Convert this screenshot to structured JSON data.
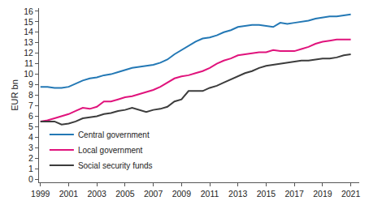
{
  "chart_data": {
    "type": "line",
    "y_label": "EUR bn",
    "x": [
      1999,
      1999.5,
      2000,
      2000.5,
      2001,
      2001.5,
      2002,
      2002.5,
      2003,
      2003.5,
      2004,
      2004.5,
      2005,
      2005.5,
      2006,
      2006.5,
      2007,
      2007.5,
      2008,
      2008.5,
      2009,
      2009.5,
      2010,
      2010.5,
      2011,
      2011.5,
      2012,
      2012.5,
      2013,
      2013.5,
      2014,
      2014.5,
      2015,
      2015.5,
      2016,
      2016.5,
      2017,
      2017.5,
      2018,
      2018.5,
      2019,
      2019.5,
      2020,
      2020.5,
      2021
    ],
    "series": [
      {
        "name": "Central government",
        "color": "#2378b5",
        "values": [
          8.8,
          8.8,
          8.7,
          8.7,
          8.8,
          9.1,
          9.4,
          9.6,
          9.7,
          9.9,
          10.0,
          10.2,
          10.4,
          10.6,
          10.7,
          10.8,
          10.9,
          11.1,
          11.4,
          11.9,
          12.3,
          12.7,
          13.1,
          13.4,
          13.5,
          13.7,
          14.0,
          14.2,
          14.5,
          14.6,
          14.7,
          14.7,
          14.6,
          14.5,
          14.9,
          14.8,
          14.9,
          15.0,
          15.1,
          15.3,
          15.4,
          15.5,
          15.5,
          15.6,
          15.7
        ]
      },
      {
        "name": "Local government",
        "color": "#e0137c",
        "values": [
          5.5,
          5.6,
          5.8,
          6.0,
          6.2,
          6.5,
          6.8,
          6.7,
          6.9,
          7.4,
          7.4,
          7.6,
          7.8,
          7.9,
          8.1,
          8.3,
          8.5,
          8.8,
          9.2,
          9.6,
          9.8,
          9.9,
          10.1,
          10.3,
          10.6,
          11.0,
          11.3,
          11.5,
          11.8,
          11.9,
          12.0,
          12.1,
          12.1,
          12.3,
          12.2,
          12.2,
          12.2,
          12.4,
          12.6,
          12.9,
          13.1,
          13.2,
          13.3,
          13.3,
          13.3
        ]
      },
      {
        "name": "Social security funds",
        "color": "#3c3c3c",
        "values": [
          5.5,
          5.5,
          5.5,
          5.2,
          5.3,
          5.5,
          5.8,
          5.9,
          6.0,
          6.2,
          6.3,
          6.5,
          6.6,
          6.8,
          6.6,
          6.4,
          6.6,
          6.7,
          6.9,
          7.4,
          7.6,
          8.4,
          8.4,
          8.4,
          8.7,
          8.9,
          9.2,
          9.5,
          9.8,
          10.1,
          10.3,
          10.6,
          10.8,
          10.9,
          11.0,
          11.1,
          11.2,
          11.3,
          11.3,
          11.4,
          11.5,
          11.5,
          11.6,
          11.8,
          11.9
        ]
      }
    ],
    "xlim": [
      1998.9,
      2021.6
    ],
    "xticks": [
      1999,
      2001,
      2003,
      2005,
      2007,
      2009,
      2011,
      2013,
      2015,
      2017,
      2019,
      2021
    ],
    "ylim": [
      -0.3,
      16.3
    ],
    "yticks": [
      0,
      1,
      2,
      3,
      4,
      5,
      6,
      7,
      8,
      9,
      10,
      11,
      12,
      13,
      14,
      15,
      16
    ],
    "grid": false,
    "legend": "lower left"
  }
}
